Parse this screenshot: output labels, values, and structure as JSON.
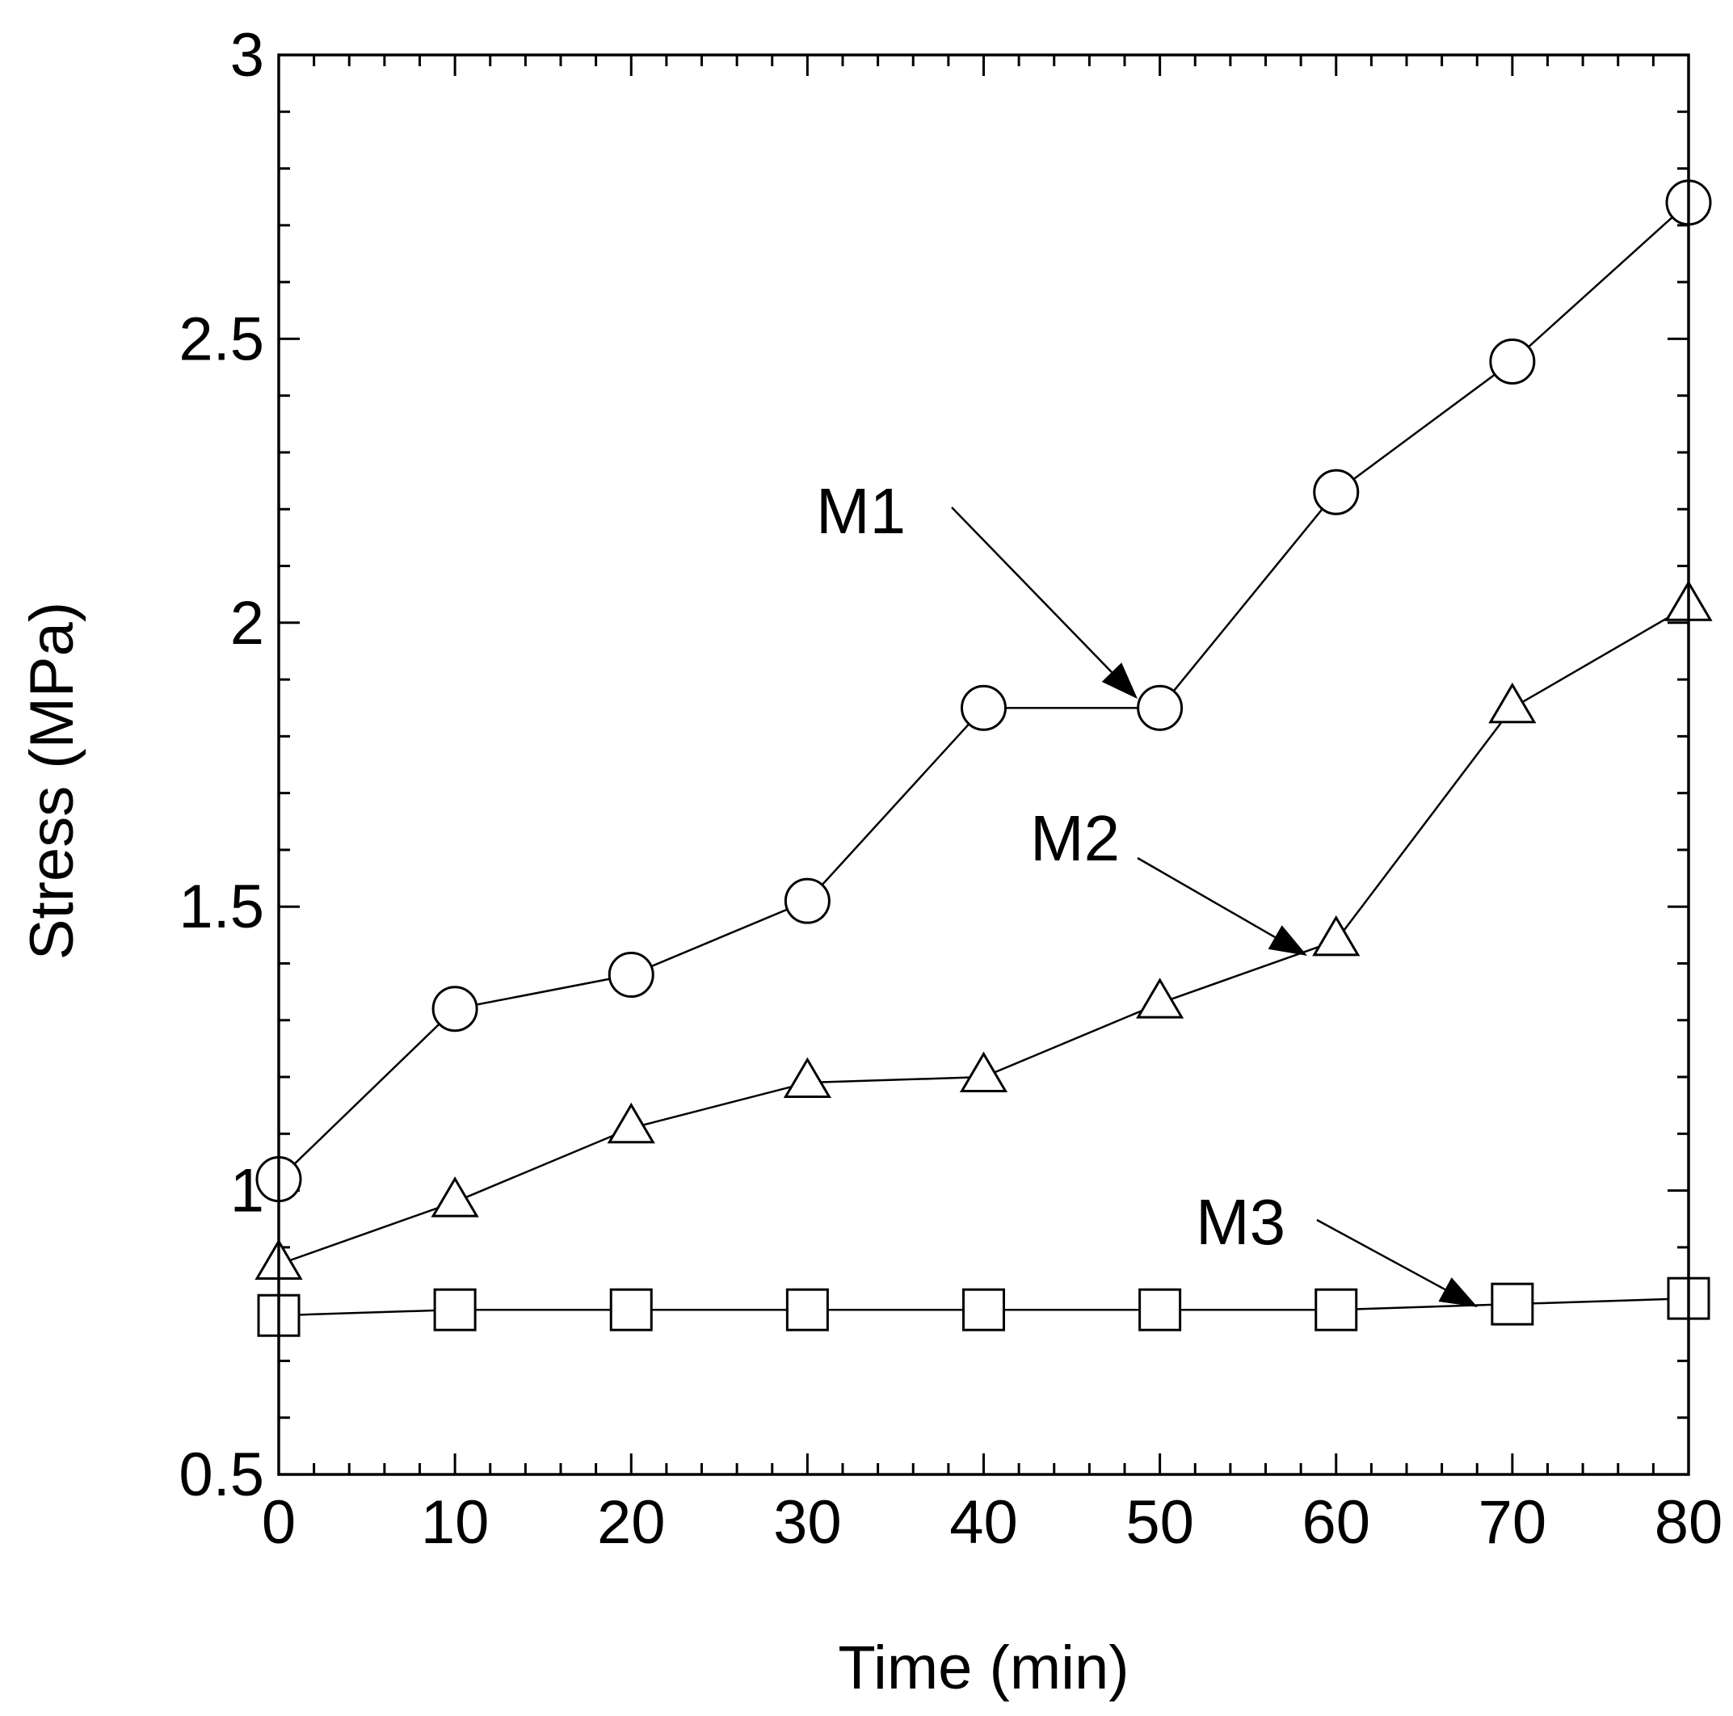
{
  "chart_data": {
    "type": "line",
    "title": "",
    "xlabel": "Time (min)",
    "ylabel": "Stress (MPa)",
    "xlim": [
      0,
      80
    ],
    "ylim": [
      0.5,
      3
    ],
    "xticks": [
      0,
      10,
      20,
      30,
      40,
      50,
      60,
      70,
      80
    ],
    "xtick_labels": [
      "0",
      "10",
      "20",
      "30",
      "40",
      "50",
      "60",
      "70",
      "80"
    ],
    "yticks": [
      0.5,
      1,
      1.5,
      2,
      2.5,
      3
    ],
    "ytick_labels": [
      "0.5",
      "1",
      "1.5",
      "2",
      "2.5",
      "3"
    ],
    "grid": false,
    "x": [
      0,
      10,
      20,
      30,
      40,
      50,
      60,
      70,
      80
    ],
    "series": [
      {
        "name": "M1",
        "marker": "circle",
        "values": [
          1.02,
          1.32,
          1.38,
          1.51,
          1.85,
          1.85,
          2.23,
          2.46,
          2.74
        ]
      },
      {
        "name": "M2",
        "marker": "triangle",
        "values": [
          0.87,
          0.98,
          1.11,
          1.19,
          1.2,
          1.33,
          1.44,
          1.85,
          2.03
        ]
      },
      {
        "name": "M3",
        "marker": "square",
        "values": [
          0.78,
          0.79,
          0.79,
          0.79,
          0.79,
          0.79,
          0.79,
          0.8,
          0.81
        ]
      }
    ],
    "annotations": [
      {
        "text": "M1",
        "points_to": {
          "x": 50,
          "y": 1.85
        }
      },
      {
        "text": "M2",
        "points_to": {
          "x": 60,
          "y": 1.44
        }
      },
      {
        "text": "M3",
        "points_to": {
          "x": 70,
          "y": 0.8
        }
      }
    ]
  }
}
